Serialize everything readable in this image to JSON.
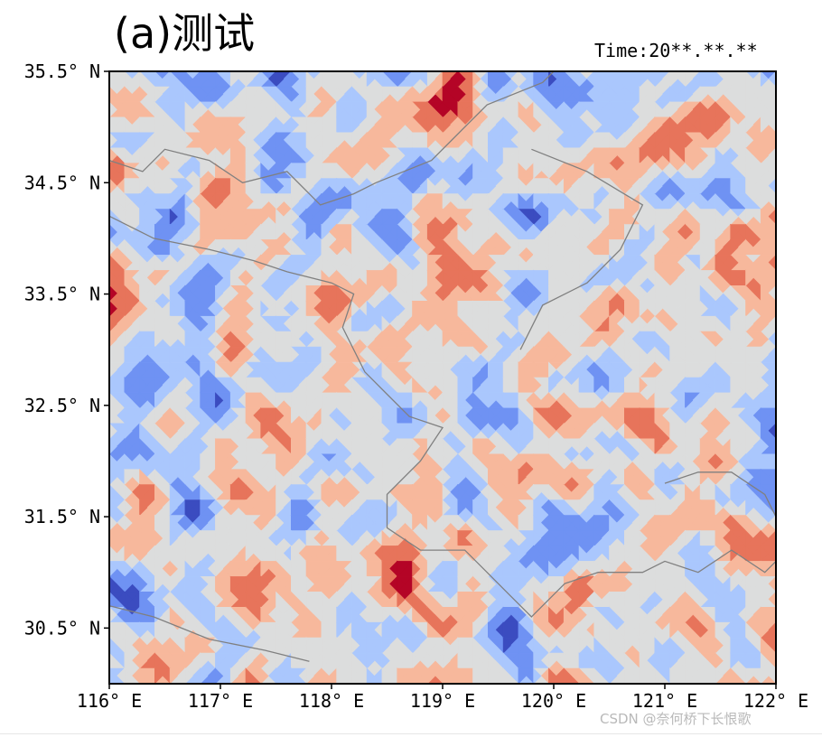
{
  "chart_data": {
    "type": "heatmap",
    "title": "(a)测试",
    "time_label": "Time:20**.**.**",
    "colormap": "coolwarm",
    "colors": [
      "#3b4cc0",
      "#6f92f3",
      "#aac7fd",
      "#dcdddd",
      "#f7b89c",
      "#e7745b",
      "#b40426"
    ],
    "xlim": [
      116,
      122
    ],
    "ylim": [
      30,
      35.5
    ],
    "xticks": [
      116,
      117,
      118,
      119,
      120,
      121,
      122
    ],
    "yticks": [
      30.5,
      31.5,
      32.5,
      33.5,
      34.5,
      35.5
    ],
    "xtick_labels": [
      "116° E",
      "117° E",
      "118° E",
      "119° E",
      "120° E",
      "121° E",
      "122° E"
    ],
    "ytick_labels": [
      "30.5° N",
      "31.5° N",
      "32.5° N",
      "33.5° N",
      "34.5° N",
      "35.5° N"
    ],
    "field": "random noise",
    "boundary_color": "#808080"
  },
  "watermark": "CSDN @奈何桥下长恨歌"
}
